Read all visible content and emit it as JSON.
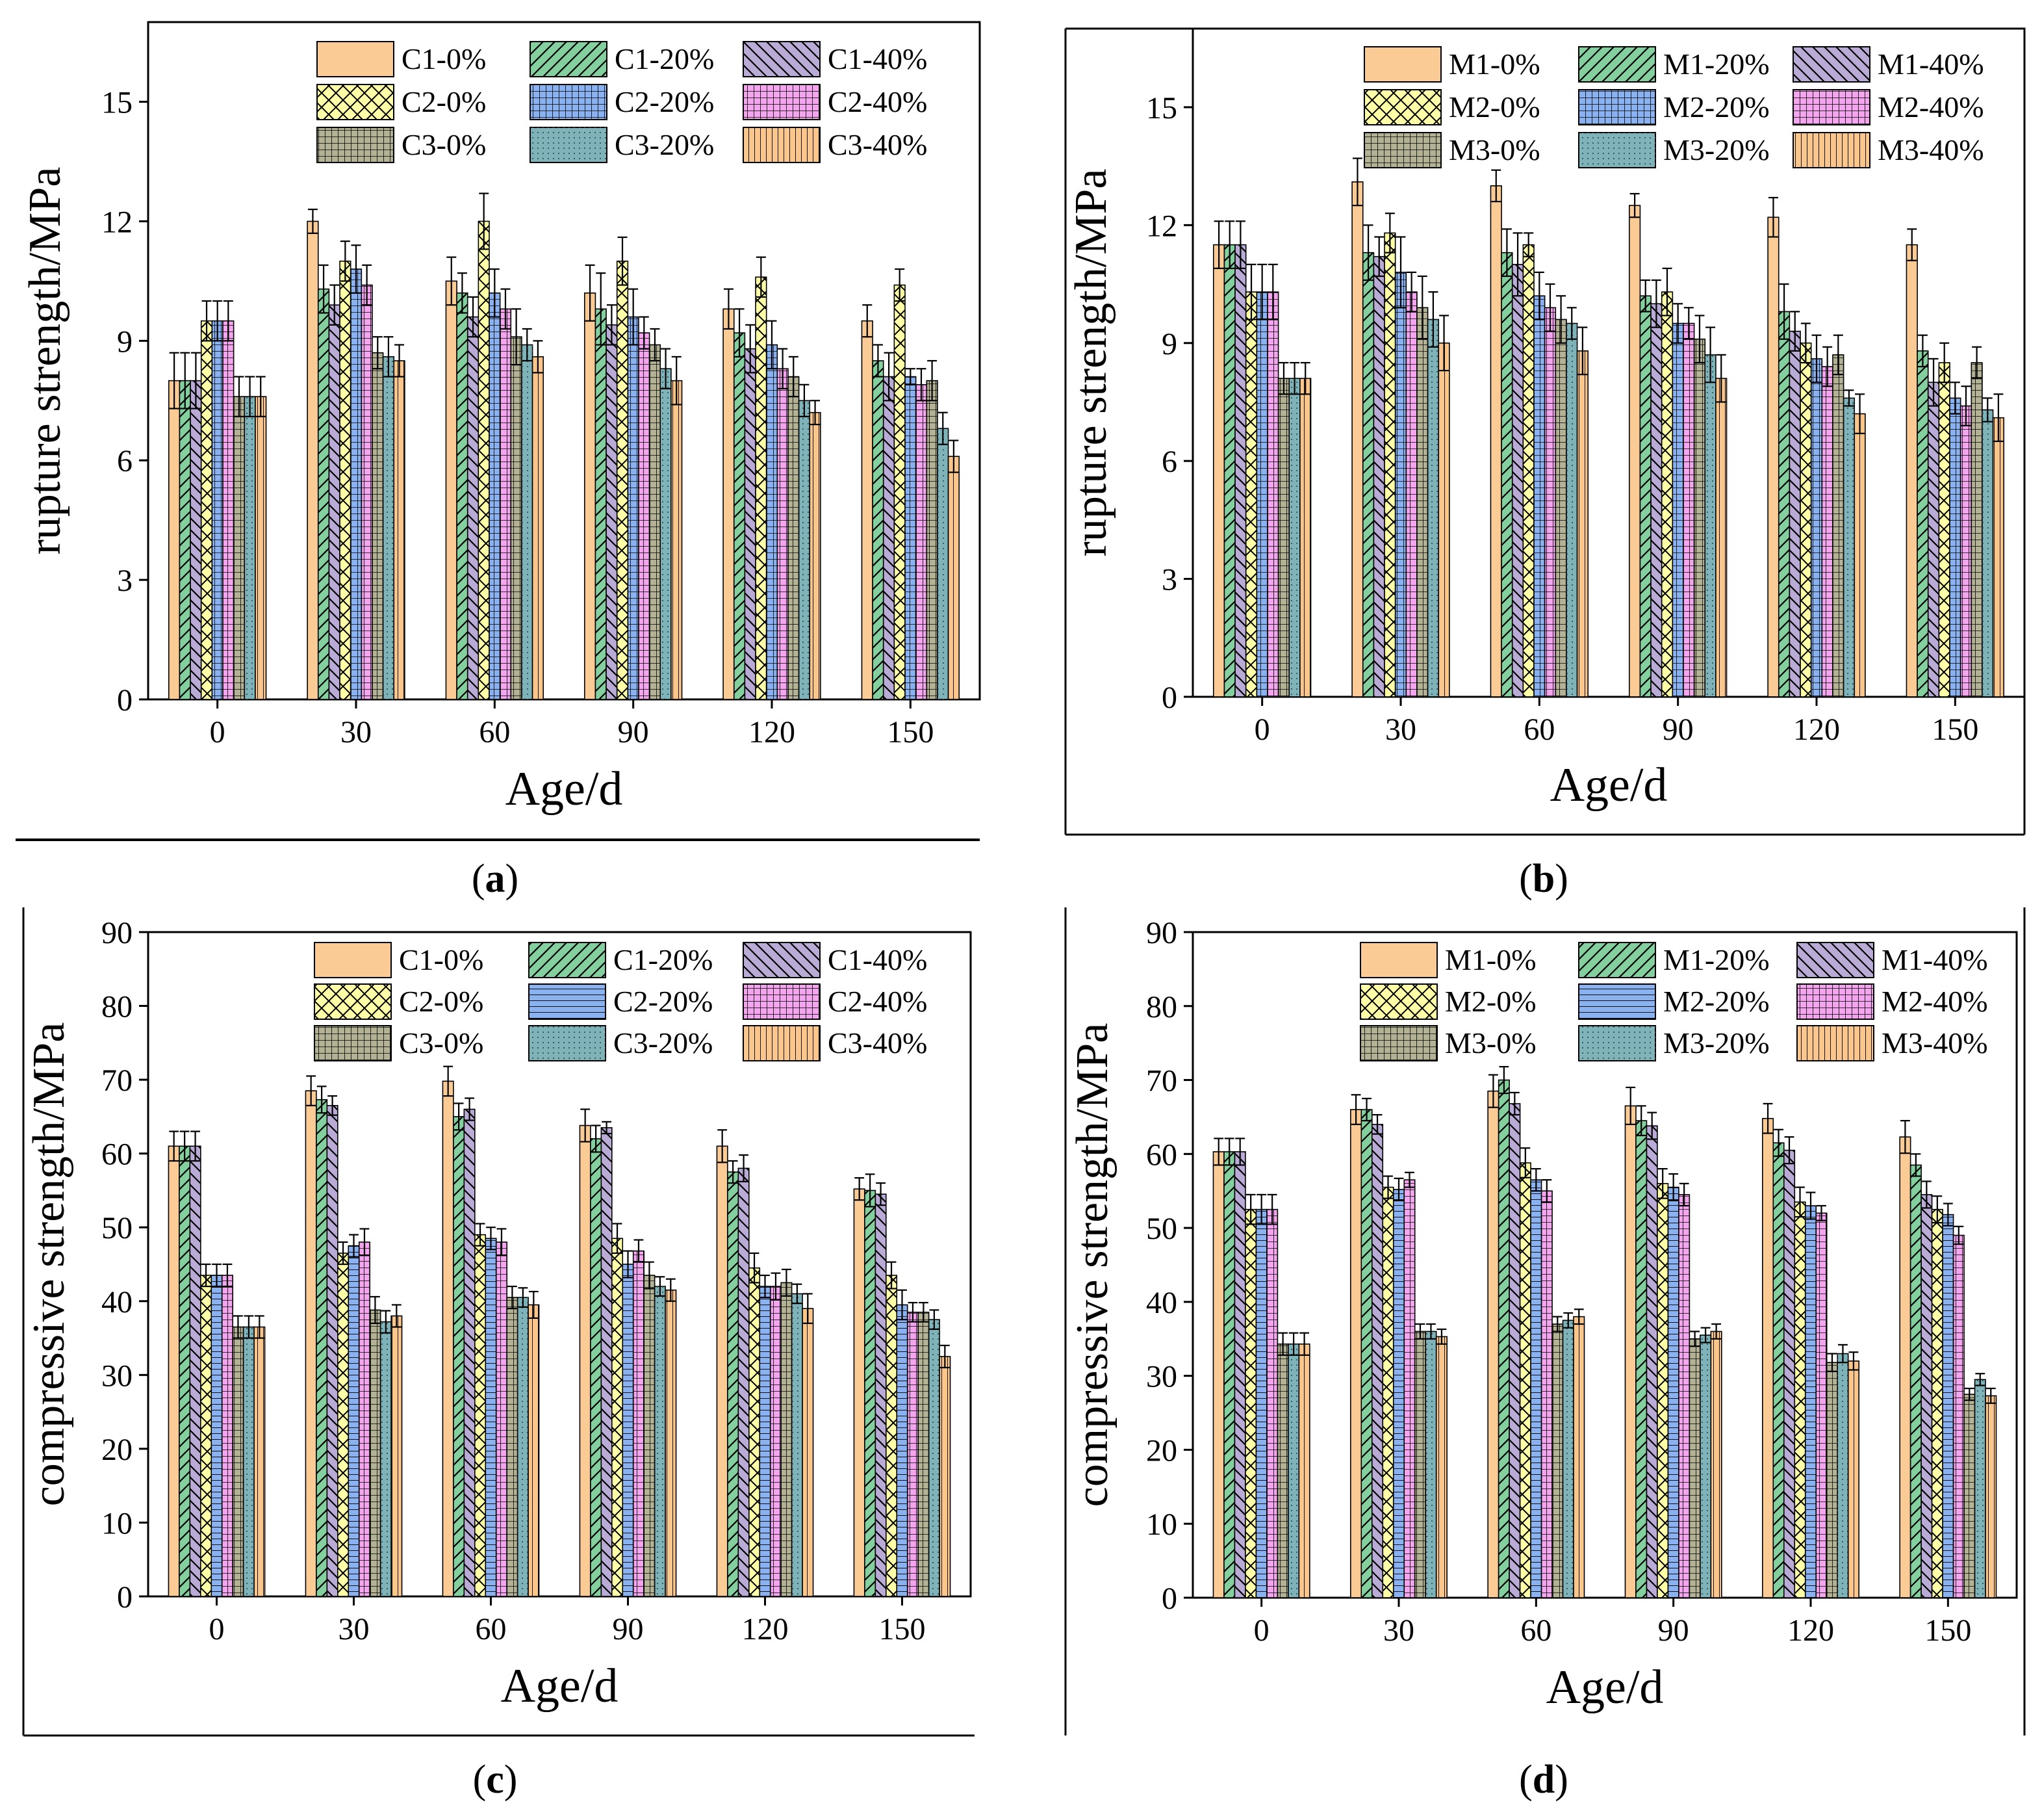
{
  "panel_labels": [
    "a",
    "b",
    "c",
    "d"
  ],
  "colors": {
    "orange": "#FBCB96",
    "green": "#84CF9E",
    "purple": "#B9AAD6",
    "yellow": "#FFFFA8",
    "blue": "#8AB2F0",
    "pink": "#F3A6EE",
    "olive": "#B4B294",
    "teal": "#7EB3BA",
    "orange2": "#FBC68C"
  },
  "chart_data": [
    {
      "type": "bar",
      "panel": "a",
      "xlabel": "Age/d",
      "ylabel": "rupture strength/MPa",
      "categories": [
        "0",
        "30",
        "60",
        "90",
        "120",
        "150"
      ],
      "ylim": [
        0,
        17
      ],
      "yticks": [
        "0",
        "3",
        "6",
        "9",
        "12",
        "15"
      ],
      "legend": [
        "C1-0%",
        "C1-20%",
        "C1-40%",
        "C2-0%",
        "C2-20%",
        "C2-40%",
        "C3-0%",
        "C3-20%",
        "C3-40%"
      ],
      "series": [
        {
          "name": "C1-0%",
          "values": [
            8.0,
            12.0,
            10.5,
            10.2,
            9.8,
            9.5
          ],
          "err": [
            0.7,
            0.3,
            0.6,
            0.7,
            0.5,
            0.4
          ]
        },
        {
          "name": "C1-20%",
          "values": [
            8.0,
            10.3,
            10.2,
            9.8,
            9.2,
            8.5
          ],
          "err": [
            0.7,
            0.6,
            0.5,
            0.9,
            0.6,
            0.4
          ]
        },
        {
          "name": "C1-40%",
          "values": [
            8.0,
            9.9,
            9.6,
            9.4,
            8.8,
            8.1
          ],
          "err": [
            0.7,
            0.5,
            0.5,
            0.5,
            0.6,
            0.6
          ]
        },
        {
          "name": "C2-0%",
          "values": [
            9.5,
            11.0,
            12.0,
            11.0,
            10.6,
            10.4
          ],
          "err": [
            0.5,
            0.5,
            0.7,
            0.6,
            0.5,
            0.4
          ]
        },
        {
          "name": "C2-20%",
          "values": [
            9.5,
            10.8,
            10.2,
            9.6,
            8.9,
            8.1
          ],
          "err": [
            0.5,
            0.6,
            0.6,
            0.7,
            0.6,
            0.2
          ]
        },
        {
          "name": "C2-40%",
          "values": [
            9.5,
            10.4,
            9.8,
            9.2,
            8.3,
            7.9
          ],
          "err": [
            0.5,
            0.5,
            0.5,
            0.4,
            0.5,
            0.4
          ]
        },
        {
          "name": "C3-0%",
          "values": [
            7.6,
            8.7,
            9.1,
            8.9,
            8.1,
            8.0
          ],
          "err": [
            0.5,
            0.4,
            0.7,
            0.4,
            0.5,
            0.5
          ]
        },
        {
          "name": "C3-20%",
          "values": [
            7.6,
            8.6,
            8.9,
            8.3,
            7.5,
            6.8
          ],
          "err": [
            0.5,
            0.5,
            0.4,
            0.5,
            0.4,
            0.4
          ]
        },
        {
          "name": "C3-40%",
          "values": [
            7.6,
            8.5,
            8.6,
            8.0,
            7.2,
            6.1
          ],
          "err": [
            0.5,
            0.4,
            0.4,
            0.6,
            0.3,
            0.4
          ]
        }
      ]
    },
    {
      "type": "bar",
      "panel": "b",
      "xlabel": "Age/d",
      "ylabel": "rupture strength/MPa",
      "categories": [
        "0",
        "30",
        "60",
        "90",
        "120",
        "150"
      ],
      "ylim": [
        0,
        17
      ],
      "yticks": [
        "0",
        "3",
        "6",
        "9",
        "12",
        "15"
      ],
      "legend": [
        "M1-0%",
        "M1-20%",
        "M1-40%",
        "M2-0%",
        "M2-20%",
        "M2-40%",
        "M3-0%",
        "M3-20%",
        "M3-40%"
      ],
      "series": [
        {
          "name": "M1-0%",
          "values": [
            11.5,
            13.1,
            13.0,
            12.5,
            12.2,
            11.5
          ],
          "err": [
            0.6,
            0.6,
            0.4,
            0.3,
            0.5,
            0.4
          ]
        },
        {
          "name": "M1-20%",
          "values": [
            11.5,
            11.3,
            11.3,
            10.2,
            9.8,
            8.8
          ],
          "err": [
            0.6,
            0.7,
            0.6,
            0.4,
            0.7,
            0.4
          ]
        },
        {
          "name": "M1-40%",
          "values": [
            11.5,
            11.2,
            11.0,
            10.0,
            9.3,
            8.0
          ],
          "err": [
            0.6,
            0.5,
            0.8,
            0.6,
            0.5,
            0.6
          ]
        },
        {
          "name": "M2-0%",
          "values": [
            10.3,
            11.8,
            11.5,
            10.3,
            9.0,
            8.5
          ],
          "err": [
            0.7,
            0.5,
            0.3,
            0.6,
            0.5,
            0.5
          ]
        },
        {
          "name": "M2-20%",
          "values": [
            10.3,
            10.8,
            10.2,
            9.5,
            8.6,
            7.6
          ],
          "err": [
            0.7,
            0.9,
            0.6,
            0.5,
            0.6,
            0.4
          ]
        },
        {
          "name": "M2-40%",
          "values": [
            10.3,
            10.3,
            9.9,
            9.5,
            8.4,
            7.4
          ],
          "err": [
            0.7,
            0.5,
            0.6,
            0.4,
            0.5,
            0.5
          ]
        },
        {
          "name": "M3-0%",
          "values": [
            8.1,
            9.9,
            9.6,
            9.1,
            8.7,
            8.5
          ],
          "err": [
            0.4,
            0.8,
            0.6,
            0.6,
            0.5,
            0.4
          ]
        },
        {
          "name": "M3-20%",
          "values": [
            8.1,
            9.6,
            9.5,
            8.7,
            7.6,
            7.3
          ],
          "err": [
            0.4,
            0.7,
            0.4,
            0.7,
            0.2,
            0.3
          ]
        },
        {
          "name": "M3-40%",
          "values": [
            8.1,
            9.0,
            8.8,
            8.1,
            7.2,
            7.1
          ],
          "err": [
            0.4,
            0.7,
            0.6,
            0.6,
            0.5,
            0.6
          ]
        }
      ]
    },
    {
      "type": "bar",
      "panel": "c",
      "xlabel": "Age/d",
      "ylabel": "compressive strength/MPa",
      "categories": [
        "0",
        "30",
        "60",
        "90",
        "120",
        "150"
      ],
      "ylim": [
        0,
        90
      ],
      "yticks": [
        "0",
        "10",
        "20",
        "30",
        "40",
        "50",
        "60",
        "70",
        "80",
        "90"
      ],
      "legend": [
        "C1-0%",
        "C1-20%",
        "C1-40%",
        "C2-0%",
        "C2-20%",
        "C2-40%",
        "C3-0%",
        "C3-20%",
        "C3-40%"
      ],
      "series": [
        {
          "name": "C1-0%",
          "values": [
            61.0,
            68.5,
            69.8,
            63.8,
            61.0,
            55.2
          ],
          "err": [
            2.0,
            2.0,
            2.0,
            2.2,
            2.2,
            1.5
          ]
        },
        {
          "name": "C1-20%",
          "values": [
            61.0,
            67.3,
            65.0,
            62.0,
            57.5,
            55.0
          ],
          "err": [
            2.0,
            1.8,
            1.8,
            1.8,
            1.5,
            2.2
          ]
        },
        {
          "name": "C1-40%",
          "values": [
            61.0,
            66.5,
            66.0,
            63.5,
            58.0,
            54.5
          ],
          "err": [
            2.0,
            1.3,
            1.5,
            0.8,
            1.8,
            1.5
          ]
        },
        {
          "name": "C2-0%",
          "values": [
            43.5,
            46.5,
            49.0,
            48.5,
            44.5,
            43.5
          ],
          "err": [
            1.5,
            1.5,
            1.5,
            2.0,
            2.0,
            1.8
          ]
        },
        {
          "name": "C2-20%",
          "values": [
            43.5,
            47.5,
            48.5,
            45.0,
            42.0,
            39.5
          ],
          "err": [
            1.5,
            1.5,
            1.5,
            1.8,
            1.5,
            2.0
          ]
        },
        {
          "name": "C2-40%",
          "values": [
            43.5,
            48.0,
            48.0,
            46.8,
            42.0,
            38.5
          ],
          "err": [
            1.5,
            1.8,
            1.8,
            1.5,
            1.8,
            1.3
          ]
        },
        {
          "name": "C3-0%",
          "values": [
            36.5,
            38.8,
            40.5,
            43.5,
            42.5,
            38.5
          ],
          "err": [
            1.5,
            1.8,
            1.5,
            1.8,
            1.8,
            1.3
          ]
        },
        {
          "name": "C3-20%",
          "values": [
            36.5,
            37.2,
            40.5,
            42.0,
            41.0,
            37.5
          ],
          "err": [
            1.5,
            1.5,
            1.3,
            1.3,
            1.3,
            1.3
          ]
        },
        {
          "name": "C3-40%",
          "values": [
            36.5,
            38.0,
            39.5,
            41.5,
            39.0,
            32.5
          ],
          "err": [
            1.5,
            1.5,
            1.8,
            1.5,
            2.0,
            1.5
          ]
        }
      ]
    },
    {
      "type": "bar",
      "panel": "d",
      "xlabel": "Age/d",
      "ylabel": "compressive strength/MPa",
      "categories": [
        "0",
        "30",
        "60",
        "90",
        "120",
        "150"
      ],
      "ylim": [
        0,
        90
      ],
      "yticks": [
        "0",
        "10",
        "20",
        "30",
        "40",
        "50",
        "60",
        "70",
        "80",
        "90"
      ],
      "legend": [
        "M1-0%",
        "M1-20%",
        "M1-40%",
        "M2-0%",
        "M2-20%",
        "M2-40%",
        "M3-0%",
        "M3-20%",
        "M3-40%"
      ],
      "series": [
        {
          "name": "M1-0%",
          "values": [
            60.3,
            66.0,
            68.5,
            66.5,
            64.8,
            62.3
          ],
          "err": [
            1.8,
            2.0,
            2.2,
            2.5,
            2.0,
            2.2
          ]
        },
        {
          "name": "M1-20%",
          "values": [
            60.3,
            66.0,
            70.0,
            64.5,
            61.5,
            58.5
          ],
          "err": [
            1.8,
            1.5,
            1.8,
            2.0,
            1.8,
            1.5
          ]
        },
        {
          "name": "M1-40%",
          "values": [
            60.3,
            64.0,
            66.8,
            63.8,
            60.5,
            54.5
          ],
          "err": [
            1.8,
            1.3,
            1.5,
            1.8,
            1.8,
            1.8
          ]
        },
        {
          "name": "M2-0%",
          "values": [
            52.5,
            55.5,
            58.8,
            56.0,
            53.5,
            52.5
          ],
          "err": [
            2.0,
            1.5,
            2.0,
            2.0,
            2.0,
            1.8
          ]
        },
        {
          "name": "M2-20%",
          "values": [
            52.5,
            55.2,
            56.5,
            55.5,
            53.0,
            51.8
          ],
          "err": [
            2.0,
            1.5,
            1.5,
            1.8,
            1.8,
            1.5
          ]
        },
        {
          "name": "M2-40%",
          "values": [
            52.5,
            56.5,
            55.0,
            54.5,
            52.0,
            49.0
          ],
          "err": [
            2.0,
            1.0,
            1.5,
            1.5,
            1.0,
            1.2
          ]
        },
        {
          "name": "M3-0%",
          "values": [
            34.3,
            36.0,
            37.0,
            35.0,
            31.8,
            27.5
          ],
          "err": [
            1.5,
            1.0,
            1.0,
            1.0,
            1.2,
            0.8
          ]
        },
        {
          "name": "M3-20%",
          "values": [
            34.3,
            36.0,
            37.5,
            35.5,
            33.0,
            29.5
          ],
          "err": [
            1.5,
            1.0,
            1.0,
            1.0,
            1.2,
            0.8
          ]
        },
        {
          "name": "M3-40%",
          "values": [
            34.3,
            35.3,
            38.0,
            36.0,
            32.0,
            27.3
          ],
          "err": [
            1.5,
            1.0,
            1.0,
            1.0,
            1.2,
            1.0
          ]
        }
      ]
    }
  ]
}
